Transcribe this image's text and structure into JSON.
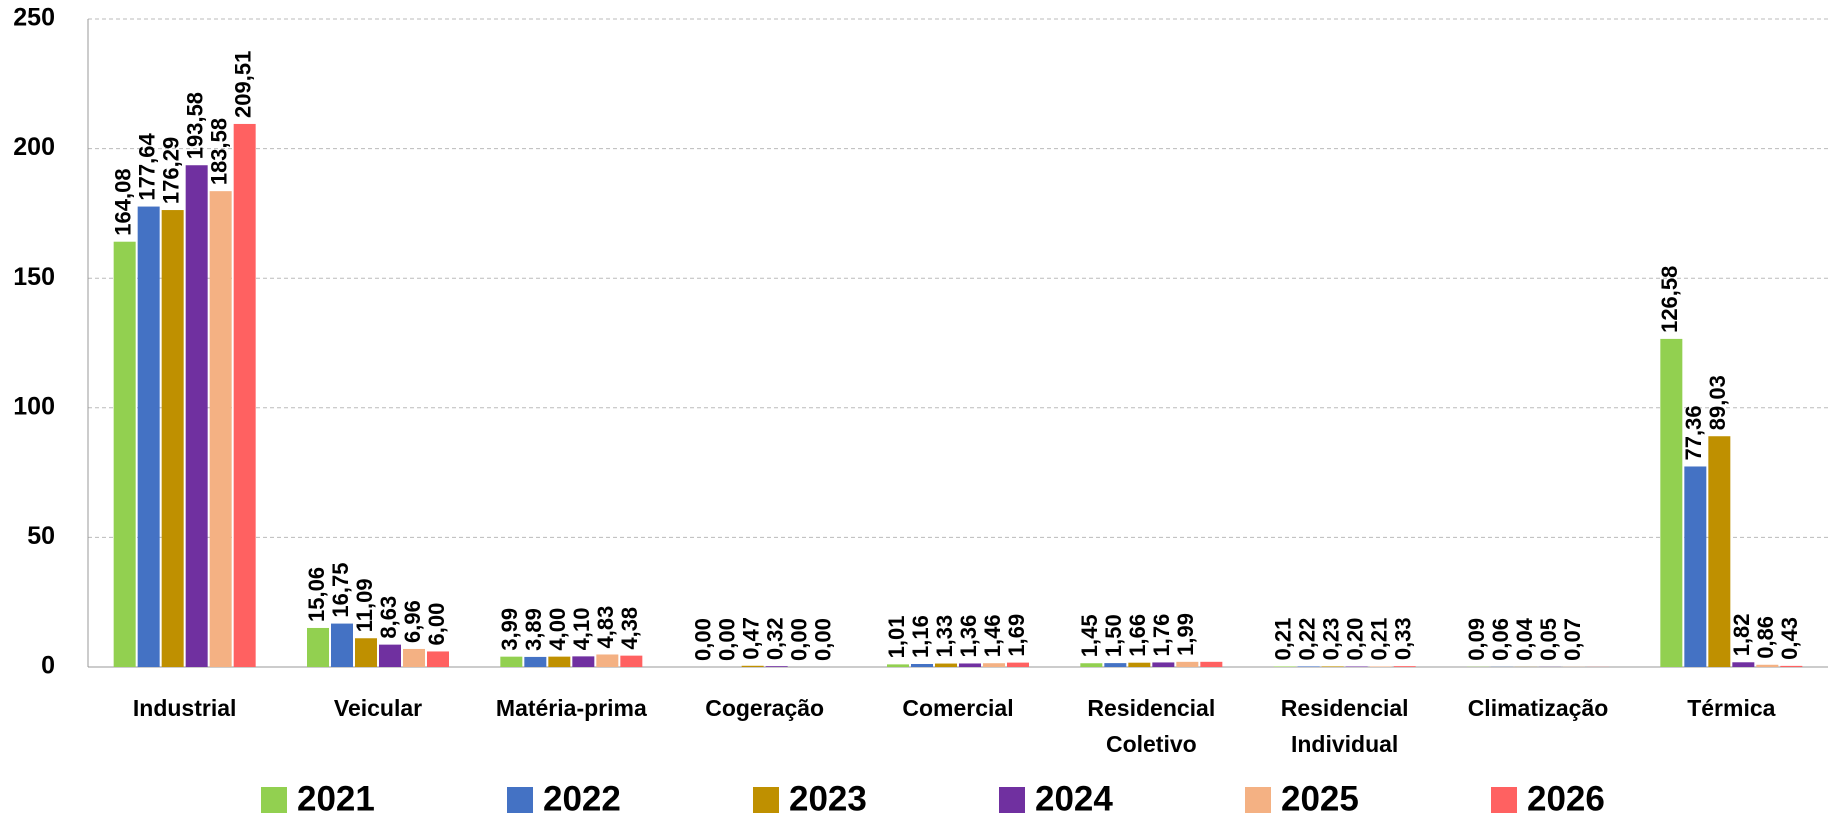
{
  "chart_data": {
    "type": "bar",
    "categories": [
      "Industrial",
      "Veicular",
      "Matéria-prima",
      "Cogeração",
      "Comercial",
      "Residencial Coletivo",
      "Residencial Individual",
      "Climatização",
      "Térmica"
    ],
    "series": [
      {
        "name": "2021",
        "color": "#92d050",
        "values": [
          164.08,
          15.06,
          3.99,
          0.0,
          1.01,
          1.45,
          0.21,
          0.09,
          126.58
        ],
        "value_labels": [
          "164,08",
          "15,06",
          "3,99",
          "0,00",
          "1,01",
          "1,45",
          "0,21",
          "0,09",
          "126,58"
        ]
      },
      {
        "name": "2022",
        "color": "#4472c4",
        "values": [
          177.64,
          16.75,
          3.89,
          0.0,
          1.16,
          1.5,
          0.22,
          0.06,
          77.36
        ],
        "value_labels": [
          "177,64",
          "16,75",
          "3,89",
          "0,00",
          "1,16",
          "1,50",
          "0,22",
          "0,06",
          "77,36"
        ]
      },
      {
        "name": "2023",
        "color": "#bf9000",
        "values": [
          176.29,
          11.09,
          4.0,
          0.47,
          1.33,
          1.66,
          0.23,
          0.04,
          89.03
        ],
        "value_labels": [
          "176,29",
          "11,09",
          "4,00",
          "0,47",
          "1,33",
          "1,66",
          "0,23",
          "0,04",
          "89,03"
        ]
      },
      {
        "name": "2024",
        "color": "#7030a0",
        "values": [
          193.58,
          8.63,
          4.1,
          0.32,
          1.36,
          1.76,
          0.2,
          0.05,
          1.82
        ],
        "value_labels": [
          "193,58",
          "8,63",
          "4,10",
          "0,32",
          "1,36",
          "1,76",
          "0,20",
          "0,05",
          "1,82"
        ]
      },
      {
        "name": "2025",
        "color": "#f4b183",
        "values": [
          183.58,
          6.96,
          4.83,
          0.0,
          1.46,
          1.99,
          0.21,
          0.07,
          0.86
        ],
        "value_labels": [
          "183,58",
          "6,96",
          "4,83",
          "0,00",
          "1,46",
          "1,99",
          "0,21",
          "0,07",
          "0,86"
        ]
      },
      {
        "name": "2026",
        "color": "#ff6161",
        "values": [
          209.51,
          6.0,
          4.38,
          0.0,
          1.69,
          2.0,
          0.33,
          0.05,
          0.43
        ],
        "value_labels": [
          "209,51",
          "6,00",
          "4,38",
          "0,00",
          "1,69",
          null,
          "0,33",
          null,
          "0,43"
        ]
      }
    ],
    "ylim": [
      0,
      250
    ],
    "yticks": [
      0,
      50,
      100,
      150,
      200,
      250
    ],
    "grid": true
  }
}
